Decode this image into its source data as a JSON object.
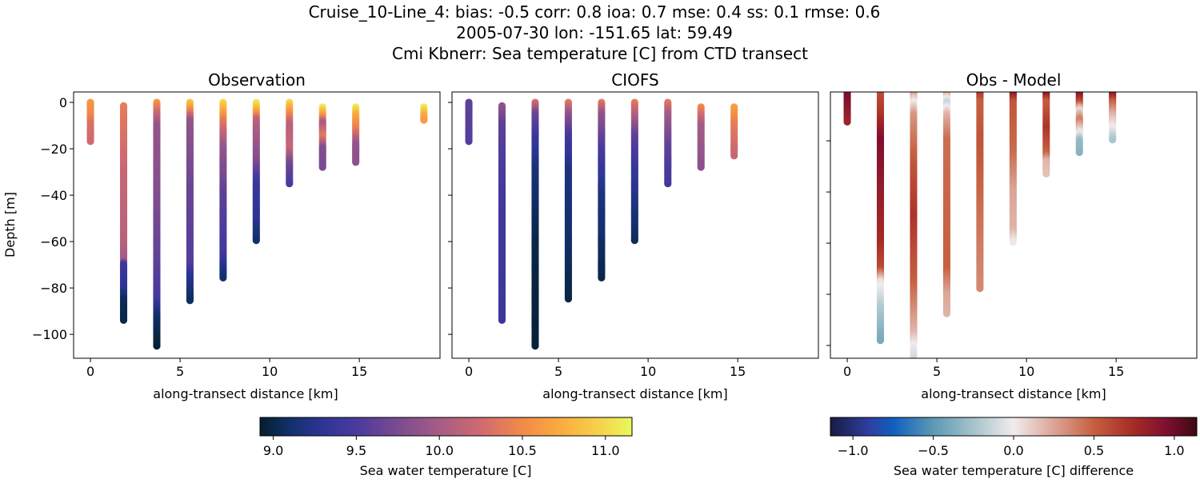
{
  "figure": {
    "title_lines": [
      "Cruise_10-Line_4: bias: -0.5  corr: 0.8  ioa: 0.7  mse: 0.4  ss: 0.1  rmse: 0.6",
      "2005-07-30 lon: -151.65 lat: 59.49",
      "Cmi Kbnerr: Sea temperature [C] from CTD transect"
    ]
  },
  "chart_data": [
    {
      "type": "scatter",
      "title": "Observation",
      "xlabel": "along-transect distance [km]",
      "ylabel": "Depth [m]",
      "xlim": [
        -0.94,
        19.5
      ],
      "ylim": [
        -110.3,
        4.5
      ],
      "xticks": [
        0,
        5,
        10,
        15
      ],
      "xtick_labels": [
        "0",
        "5",
        "10",
        "15"
      ],
      "yticks": [
        0,
        -20,
        -40,
        -60,
        -80,
        -100
      ],
      "ytick_labels": [
        "0",
        "−20",
        "−40",
        "−60",
        "−80",
        "−100"
      ],
      "colormap": "thermal",
      "profiles": [
        {
          "x": 0,
          "stops": [
            [
              0,
              10.6
            ],
            [
              -5,
              10.5
            ],
            [
              -10,
              10.3
            ],
            [
              -17,
              10.25
            ]
          ]
        },
        {
          "x": 1.85,
          "stops": [
            [
              -1.5,
              10.4
            ],
            [
              -30,
              10.2
            ],
            [
              -60,
              10.1
            ],
            [
              -68,
              10.0
            ],
            [
              -70,
              9.4
            ],
            [
              -80,
              9.3
            ],
            [
              -85,
              9.05
            ],
            [
              -94,
              9.0
            ]
          ]
        },
        {
          "x": 3.7,
          "stops": [
            [
              0,
              10.6
            ],
            [
              -5,
              10.2
            ],
            [
              -10,
              9.9
            ],
            [
              -40,
              9.8
            ],
            [
              -70,
              9.6
            ],
            [
              -85,
              9.45
            ],
            [
              -92,
              9.1
            ],
            [
              -105,
              8.95
            ]
          ]
        },
        {
          "x": 5.55,
          "stops": [
            [
              0,
              10.9
            ],
            [
              -3,
              10.6
            ],
            [
              -8,
              9.9
            ],
            [
              -40,
              9.65
            ],
            [
              -70,
              9.55
            ],
            [
              -75,
              9.3
            ],
            [
              -86,
              9.05
            ]
          ]
        },
        {
          "x": 7.4,
          "stops": [
            [
              0,
              11.0
            ],
            [
              -4,
              10.7
            ],
            [
              -8,
              10.4
            ],
            [
              -20,
              9.9
            ],
            [
              -40,
              9.6
            ],
            [
              -65,
              9.45
            ],
            [
              -76,
              9.1
            ]
          ]
        },
        {
          "x": 9.25,
          "stops": [
            [
              0,
              11.1
            ],
            [
              -4,
              10.7
            ],
            [
              -8,
              10.1
            ],
            [
              -25,
              9.8
            ],
            [
              -35,
              9.4
            ],
            [
              -50,
              9.3
            ],
            [
              -60,
              9.1
            ]
          ]
        },
        {
          "x": 11.1,
          "stops": [
            [
              0,
              11.0
            ],
            [
              -4,
              10.6
            ],
            [
              -10,
              10.1
            ],
            [
              -20,
              10.2
            ],
            [
              -27,
              9.7
            ],
            [
              -35,
              9.5
            ]
          ]
        },
        {
          "x": 12.95,
          "stops": [
            [
              -2,
              11.1
            ],
            [
              -6,
              10.6
            ],
            [
              -9,
              10.0
            ],
            [
              -15,
              10.4
            ],
            [
              -20,
              9.8
            ],
            [
              -28,
              9.75
            ]
          ]
        },
        {
          "x": 14.8,
          "stops": [
            [
              -2,
              11.1
            ],
            [
              -6,
              10.7
            ],
            [
              -12,
              10.4
            ],
            [
              -18,
              9.9
            ],
            [
              -26,
              9.85
            ]
          ]
        },
        {
          "x": 18.6,
          "stops": [
            [
              -2,
              11.1
            ],
            [
              -6,
              10.7
            ],
            [
              -8,
              10.6
            ]
          ]
        }
      ]
    },
    {
      "type": "scatter",
      "title": "CIOFS",
      "xlabel": "along-transect distance [km]",
      "xlim": [
        -0.94,
        19.5
      ],
      "ylim": [
        -110.3,
        4.5
      ],
      "xticks": [
        0,
        5,
        10,
        15
      ],
      "xtick_labels": [
        "0",
        "5",
        "10",
        "15"
      ],
      "yticks": [
        0,
        -20,
        -40,
        -60,
        -80,
        -100
      ],
      "colormap": "thermal",
      "profiles": [
        {
          "x": 0,
          "stops": [
            [
              0,
              9.6
            ],
            [
              -17,
              9.55
            ]
          ]
        },
        {
          "x": 1.85,
          "stops": [
            [
              -1.5,
              9.9
            ],
            [
              -10,
              9.6
            ],
            [
              -40,
              9.45
            ],
            [
              -94,
              9.4
            ]
          ]
        },
        {
          "x": 3.7,
          "stops": [
            [
              0,
              10.3
            ],
            [
              -5,
              9.7
            ],
            [
              -15,
              9.4
            ],
            [
              -30,
              9.15
            ],
            [
              -60,
              9.0
            ],
            [
              -105,
              8.95
            ]
          ]
        },
        {
          "x": 5.55,
          "stops": [
            [
              0,
              10.4
            ],
            [
              -5,
              9.9
            ],
            [
              -15,
              9.45
            ],
            [
              -30,
              9.2
            ],
            [
              -85,
              9.0
            ]
          ]
        },
        {
          "x": 7.4,
          "stops": [
            [
              0,
              10.4
            ],
            [
              -5,
              9.9
            ],
            [
              -20,
              9.5
            ],
            [
              -40,
              9.2
            ],
            [
              -76,
              9.0
            ]
          ]
        },
        {
          "x": 9.25,
          "stops": [
            [
              0,
              10.4
            ],
            [
              -5,
              10.1
            ],
            [
              -15,
              9.6
            ],
            [
              -30,
              9.35
            ],
            [
              -60,
              9.05
            ]
          ]
        },
        {
          "x": 11.1,
          "stops": [
            [
              0,
              10.4
            ],
            [
              -5,
              10.0
            ],
            [
              -20,
              9.6
            ],
            [
              -35,
              9.45
            ]
          ]
        },
        {
          "x": 12.95,
          "stops": [
            [
              -2,
              10.5
            ],
            [
              -10,
              10.0
            ],
            [
              -28,
              9.85
            ]
          ]
        },
        {
          "x": 14.8,
          "stops": [
            [
              -2,
              10.65
            ],
            [
              -10,
              10.4
            ],
            [
              -23,
              10.2
            ]
          ]
        }
      ]
    },
    {
      "type": "scatter",
      "title": "Obs - Model",
      "xlabel": "along-transect distance [km]",
      "xlim": [
        -0.94,
        19.5
      ],
      "ylim": [
        -105,
        -0.9
      ],
      "xticks": [
        0,
        5,
        10,
        15
      ],
      "xtick_labels": [
        "0",
        "5",
        "10",
        "15"
      ],
      "yticks": [
        -20,
        -40,
        -60,
        -80,
        -100
      ],
      "colormap": "balance",
      "profiles": [
        {
          "x": 0,
          "stops": [
            [
              0,
              1.0
            ],
            [
              -13,
              0.8
            ]
          ]
        },
        {
          "x": 1.85,
          "stops": [
            [
              0,
              0.55
            ],
            [
              -10,
              0.7
            ],
            [
              -20,
              0.95
            ],
            [
              -40,
              0.85
            ],
            [
              -60,
              0.75
            ],
            [
              -70,
              0.6
            ],
            [
              -75,
              0.05
            ],
            [
              -85,
              -0.2
            ],
            [
              -98,
              -0.4
            ]
          ]
        },
        {
          "x": 3.7,
          "stops": [
            [
              0,
              0.4
            ],
            [
              -5,
              0.0
            ],
            [
              -10,
              0.3
            ],
            [
              -30,
              0.55
            ],
            [
              -50,
              0.7
            ],
            [
              -75,
              0.5
            ],
            [
              -95,
              0.2
            ],
            [
              -100,
              0.0
            ],
            [
              -110,
              -0.2
            ]
          ]
        },
        {
          "x": 5.55,
          "stops": [
            [
              0,
              0.4
            ],
            [
              -5,
              -0.15
            ],
            [
              -10,
              0.2
            ],
            [
              -20,
              0.45
            ],
            [
              -70,
              0.5
            ],
            [
              -80,
              0.25
            ],
            [
              -88,
              0.2
            ]
          ]
        },
        {
          "x": 7.4,
          "stops": [
            [
              0,
              0.8
            ],
            [
              -5,
              0.5
            ],
            [
              -20,
              0.55
            ],
            [
              -60,
              0.4
            ],
            [
              -78,
              0.35
            ]
          ]
        },
        {
          "x": 9.25,
          "stops": [
            [
              0,
              1.05
            ],
            [
              -5,
              0.55
            ],
            [
              -25,
              0.45
            ],
            [
              -40,
              0.25
            ],
            [
              -55,
              0.2
            ],
            [
              -60,
              0.0
            ]
          ]
        },
        {
          "x": 11.1,
          "stops": [
            [
              0,
              1.1
            ],
            [
              -5,
              0.5
            ],
            [
              -15,
              0.7
            ],
            [
              -25,
              0.5
            ],
            [
              -28,
              0.2
            ],
            [
              -33,
              0.15
            ]
          ]
        },
        {
          "x": 12.95,
          "stops": [
            [
              0,
              1.1
            ],
            [
              -5,
              0.6
            ],
            [
              -8,
              0.05
            ],
            [
              -12,
              0.4
            ],
            [
              -17,
              0.0
            ],
            [
              -20,
              -0.3
            ],
            [
              -25,
              -0.35
            ]
          ]
        },
        {
          "x": 14.8,
          "stops": [
            [
              0,
              1.1
            ],
            [
              -5,
              0.5
            ],
            [
              -10,
              0.2
            ],
            [
              -15,
              0.0
            ],
            [
              -20,
              -0.25
            ]
          ]
        }
      ]
    }
  ],
  "colorbars": [
    {
      "label": "Sea water temperature [C]",
      "range": [
        8.92,
        11.16
      ],
      "ticks": [
        9.0,
        9.5,
        10.0,
        10.5,
        11.0
      ],
      "tick_labels": [
        "9.0",
        "9.5",
        "10.0",
        "10.5",
        "11.0"
      ],
      "colors": [
        [
          8.92,
          "#041f2e"
        ],
        [
          9.1,
          "#12306a"
        ],
        [
          9.3,
          "#2d3595"
        ],
        [
          9.5,
          "#4b3a9e"
        ],
        [
          9.75,
          "#7a4b90"
        ],
        [
          10.0,
          "#a65c85"
        ],
        [
          10.25,
          "#d06a70"
        ],
        [
          10.5,
          "#f28a48"
        ],
        [
          10.75,
          "#fbae3f"
        ],
        [
          11.0,
          "#f4d94e"
        ],
        [
          11.16,
          "#e8fa5b"
        ]
      ]
    },
    {
      "label": "Sea water temperature [C] difference",
      "range": [
        -1.14,
        1.14
      ],
      "ticks": [
        -1.0,
        -0.5,
        0.0,
        0.5,
        1.0
      ],
      "tick_labels": [
        "−1.0",
        "−0.5",
        "0.0",
        "0.5",
        "1.0"
      ],
      "colors": [
        [
          -1.14,
          "#181c43"
        ],
        [
          -0.9,
          "#2f3ea0"
        ],
        [
          -0.75,
          "#0f5fbe"
        ],
        [
          -0.5,
          "#5c99b3"
        ],
        [
          -0.25,
          "#a6c3cc"
        ],
        [
          0.0,
          "#f1ecec"
        ],
        [
          0.25,
          "#dba596"
        ],
        [
          0.5,
          "#c65f3f"
        ],
        [
          0.75,
          "#a52a26"
        ],
        [
          0.95,
          "#7e0f30"
        ],
        [
          1.14,
          "#3c0912"
        ]
      ]
    }
  ]
}
